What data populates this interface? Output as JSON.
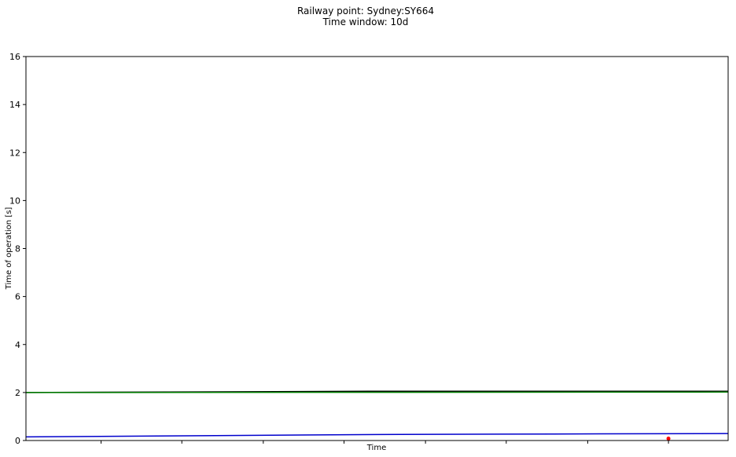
{
  "chart_data": {
    "type": "line",
    "title": "Railway point: Sydney:SY664",
    "subtitle": "Time window: 10d",
    "xlabel": "Time",
    "ylabel": "Time of operation [s]",
    "ylim": [
      0,
      16
    ],
    "yticks": [
      "0",
      "2",
      "4",
      "6",
      "8",
      "10",
      "12",
      "14",
      "16"
    ],
    "xlim": [
      0,
      10
    ],
    "xticks": [
      1.07,
      2.22,
      3.38,
      4.53,
      5.69,
      6.84,
      8.0,
      9.15
    ],
    "grid": false,
    "legend": "none",
    "series": [
      {
        "color": "#000000",
        "style": "line",
        "x": [
          0,
          4.9,
          10
        ],
        "y": [
          2.0,
          2.05,
          2.05
        ]
      },
      {
        "color": "#008000",
        "style": "line",
        "x": [
          0,
          10
        ],
        "y": [
          2.0,
          2.02
        ]
      },
      {
        "color": "#0000cc",
        "style": "line",
        "x": [
          0,
          2.5,
          5,
          7.5,
          10
        ],
        "y": [
          0.15,
          0.2,
          0.25,
          0.27,
          0.29
        ]
      },
      {
        "color": "#ff0000",
        "style": "point",
        "x": [
          9.15
        ],
        "y": [
          0.08
        ]
      }
    ]
  }
}
